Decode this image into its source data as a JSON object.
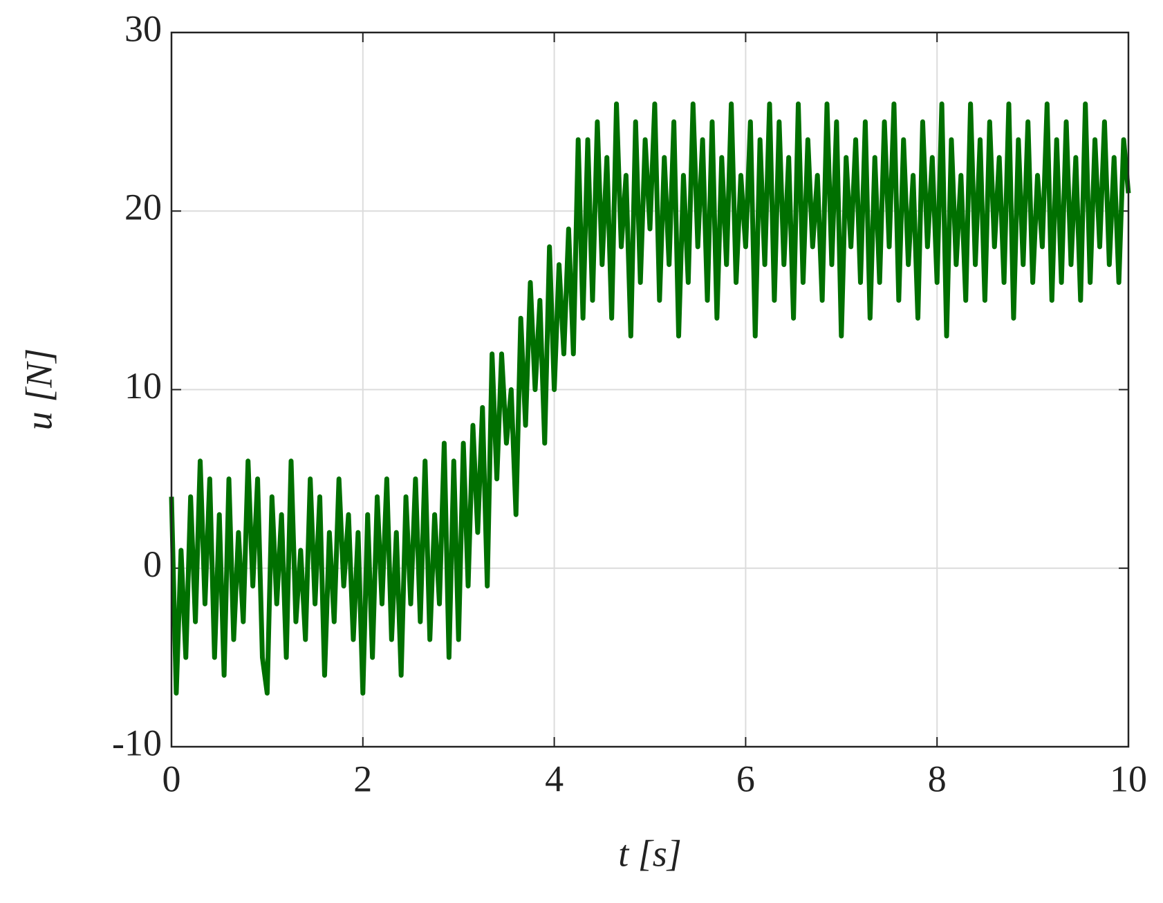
{
  "chart_data": {
    "type": "line",
    "xlabel": "t [s]",
    "ylabel": "u [N]",
    "xlim": [
      0,
      10
    ],
    "ylim": [
      -10,
      30
    ],
    "xticks": [
      0,
      2,
      4,
      6,
      8,
      10
    ],
    "yticks": [
      {
        "value": -10,
        "label": "-10"
      },
      0,
      10,
      20,
      30
    ],
    "grid": true,
    "x": [
      0,
      0.05,
      0.1,
      0.15,
      0.2,
      0.25,
      0.3,
      0.35,
      0.4,
      0.45,
      0.5,
      0.55,
      0.6,
      0.65,
      0.7,
      0.75,
      0.8,
      0.85,
      0.9,
      0.95,
      1,
      1.05,
      1.1,
      1.15,
      1.2,
      1.25,
      1.3,
      1.35,
      1.4,
      1.45,
      1.5,
      1.55,
      1.6,
      1.65,
      1.7,
      1.75,
      1.8,
      1.85,
      1.9,
      1.95,
      2,
      2.05,
      2.1,
      2.15,
      2.2,
      2.25,
      2.3,
      2.35,
      2.4,
      2.45,
      2.5,
      2.55,
      2.6,
      2.65,
      2.7,
      2.75,
      2.8,
      2.85,
      2.9,
      2.95,
      3,
      3.05,
      3.1,
      3.15,
      3.2,
      3.25,
      3.3,
      3.35,
      3.4,
      3.45,
      3.5,
      3.55,
      3.6,
      3.65,
      3.7,
      3.75,
      3.8,
      3.85,
      3.9,
      3.95,
      4,
      4.05,
      4.1,
      4.15,
      4.2,
      4.25,
      4.3,
      4.35,
      4.4,
      4.45,
      4.5,
      4.55,
      4.6,
      4.65,
      4.7,
      4.75,
      4.8,
      4.85,
      4.9,
      4.95,
      5,
      5.05,
      5.1,
      5.15,
      5.2,
      5.25,
      5.3,
      5.35,
      5.4,
      5.45,
      5.5,
      5.55,
      5.6,
      5.65,
      5.7,
      5.75,
      5.8,
      5.85,
      5.9,
      5.95,
      6,
      6.05,
      6.1,
      6.15,
      6.2,
      6.25,
      6.3,
      6.35,
      6.4,
      6.45,
      6.5,
      6.55,
      6.6,
      6.65,
      6.7,
      6.75,
      6.8,
      6.85,
      6.9,
      6.95,
      7,
      7.05,
      7.1,
      7.15,
      7.2,
      7.25,
      7.3,
      7.35,
      7.4,
      7.45,
      7.5,
      7.55,
      7.6,
      7.65,
      7.7,
      7.75,
      7.8,
      7.85,
      7.9,
      7.95,
      8,
      8.05,
      8.1,
      8.15,
      8.2,
      8.25,
      8.3,
      8.35,
      8.4,
      8.45,
      8.5,
      8.55,
      8.6,
      8.65,
      8.7,
      8.75,
      8.8,
      8.85,
      8.9,
      8.95,
      9,
      9.05,
      9.1,
      9.15,
      9.2,
      9.25,
      9.3,
      9.35,
      9.4,
      9.45,
      9.5,
      9.55,
      9.6,
      9.65,
      9.7,
      9.75,
      9.8,
      9.85,
      9.9,
      9.95,
      10
    ],
    "series": [
      {
        "color": "#007000",
        "values": [
          4,
          -7,
          1,
          -5,
          4,
          -3,
          6,
          -2,
          5,
          -5,
          3,
          -6,
          5,
          -4,
          2,
          -3,
          6,
          -1,
          5,
          -5,
          -7,
          4,
          -2,
          3,
          -5,
          6,
          -3,
          1,
          -4,
          5,
          -2,
          4,
          -6,
          2,
          -3,
          5,
          -1,
          3,
          -4,
          2,
          -7,
          3,
          -5,
          4,
          -2,
          5,
          -4,
          2,
          -6,
          4,
          -2,
          5,
          -3,
          6,
          -4,
          3,
          -2,
          7,
          -5,
          6,
          -4,
          7,
          -1,
          8,
          2,
          9,
          -1,
          12,
          5,
          12,
          7,
          10,
          3,
          14,
          8,
          16,
          10,
          15,
          7,
          18,
          10,
          17,
          12,
          19,
          12,
          24,
          14,
          24,
          15,
          25,
          17,
          23,
          14,
          26,
          18,
          22,
          13,
          25,
          16,
          24,
          19,
          26,
          15,
          23,
          17,
          25,
          13,
          22,
          16,
          26,
          18,
          24,
          15,
          25,
          14,
          23,
          17,
          26,
          16,
          22,
          18,
          25,
          13,
          24,
          17,
          26,
          15,
          25,
          17,
          23,
          14,
          26,
          16,
          24,
          18,
          22,
          15,
          26,
          17,
          25,
          13,
          23,
          18,
          24,
          16,
          25,
          14,
          23,
          16,
          25,
          18,
          26,
          15,
          24,
          17,
          22,
          14,
          25,
          18,
          23,
          16,
          26,
          13,
          24,
          17,
          22,
          15,
          26,
          17,
          24,
          15,
          25,
          18,
          23,
          16,
          26,
          14,
          24,
          17,
          25,
          16,
          22,
          18,
          26,
          15,
          24,
          16,
          25,
          17,
          23,
          15,
          26,
          16,
          24,
          18,
          25,
          17,
          23,
          16,
          24,
          21
        ]
      }
    ]
  }
}
